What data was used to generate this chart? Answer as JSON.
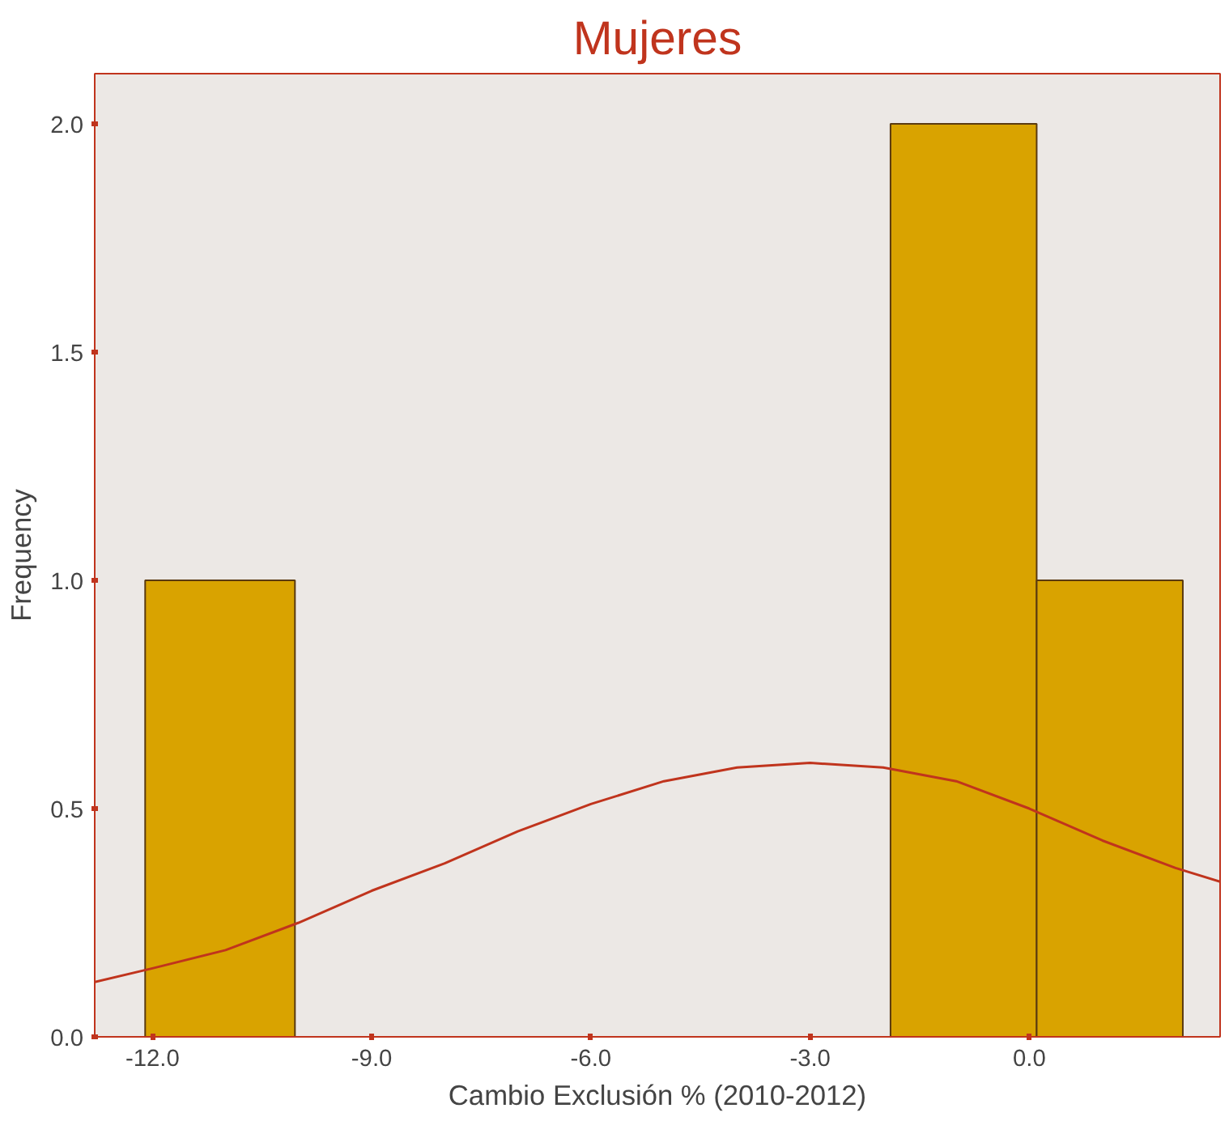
{
  "chart_data": {
    "type": "histogram",
    "title": "Mujeres",
    "xlabel": "Cambio Exclusión % (2010-2012)",
    "ylabel": "Frequency",
    "bins": [
      -12.1,
      -10.05,
      -1.9,
      0.1,
      2.1
    ],
    "values": [
      1,
      0,
      2,
      1
    ],
    "color": "#d9a300",
    "series": [
      {
        "type": "line",
        "color": "#c0341d",
        "x": [
          -12.79,
          -12,
          -11,
          -10,
          -9,
          -8,
          -7,
          -6,
          -5,
          -4,
          -3,
          -2,
          -1,
          0,
          1,
          2,
          2.61
        ],
        "values": [
          0.12,
          0.15,
          0.19,
          0.25,
          0.32,
          0.38,
          0.45,
          0.51,
          0.56,
          0.59,
          0.6,
          0.59,
          0.56,
          0.5,
          0.43,
          0.37,
          0.34
        ]
      }
    ],
    "xlim": [
      -12.79,
      2.61
    ],
    "ylim": [
      0,
      2.11
    ],
    "xticks": [
      {
        "value": -12,
        "label": "-12.0"
      },
      {
        "value": -9,
        "label": "-9.0"
      },
      {
        "value": -6,
        "label": "-6.0"
      },
      {
        "value": -3,
        "label": "-3.0"
      },
      {
        "value": 0,
        "label": "0.0"
      }
    ],
    "yticks": [
      {
        "value": 0,
        "label": "0.0"
      },
      {
        "value": 0.5,
        "label": "0.5"
      },
      {
        "value": 1,
        "label": "1.0"
      },
      {
        "value": 1.5,
        "label": "1.5"
      },
      {
        "value": 2,
        "label": "2.0"
      }
    ],
    "grid": false
  }
}
